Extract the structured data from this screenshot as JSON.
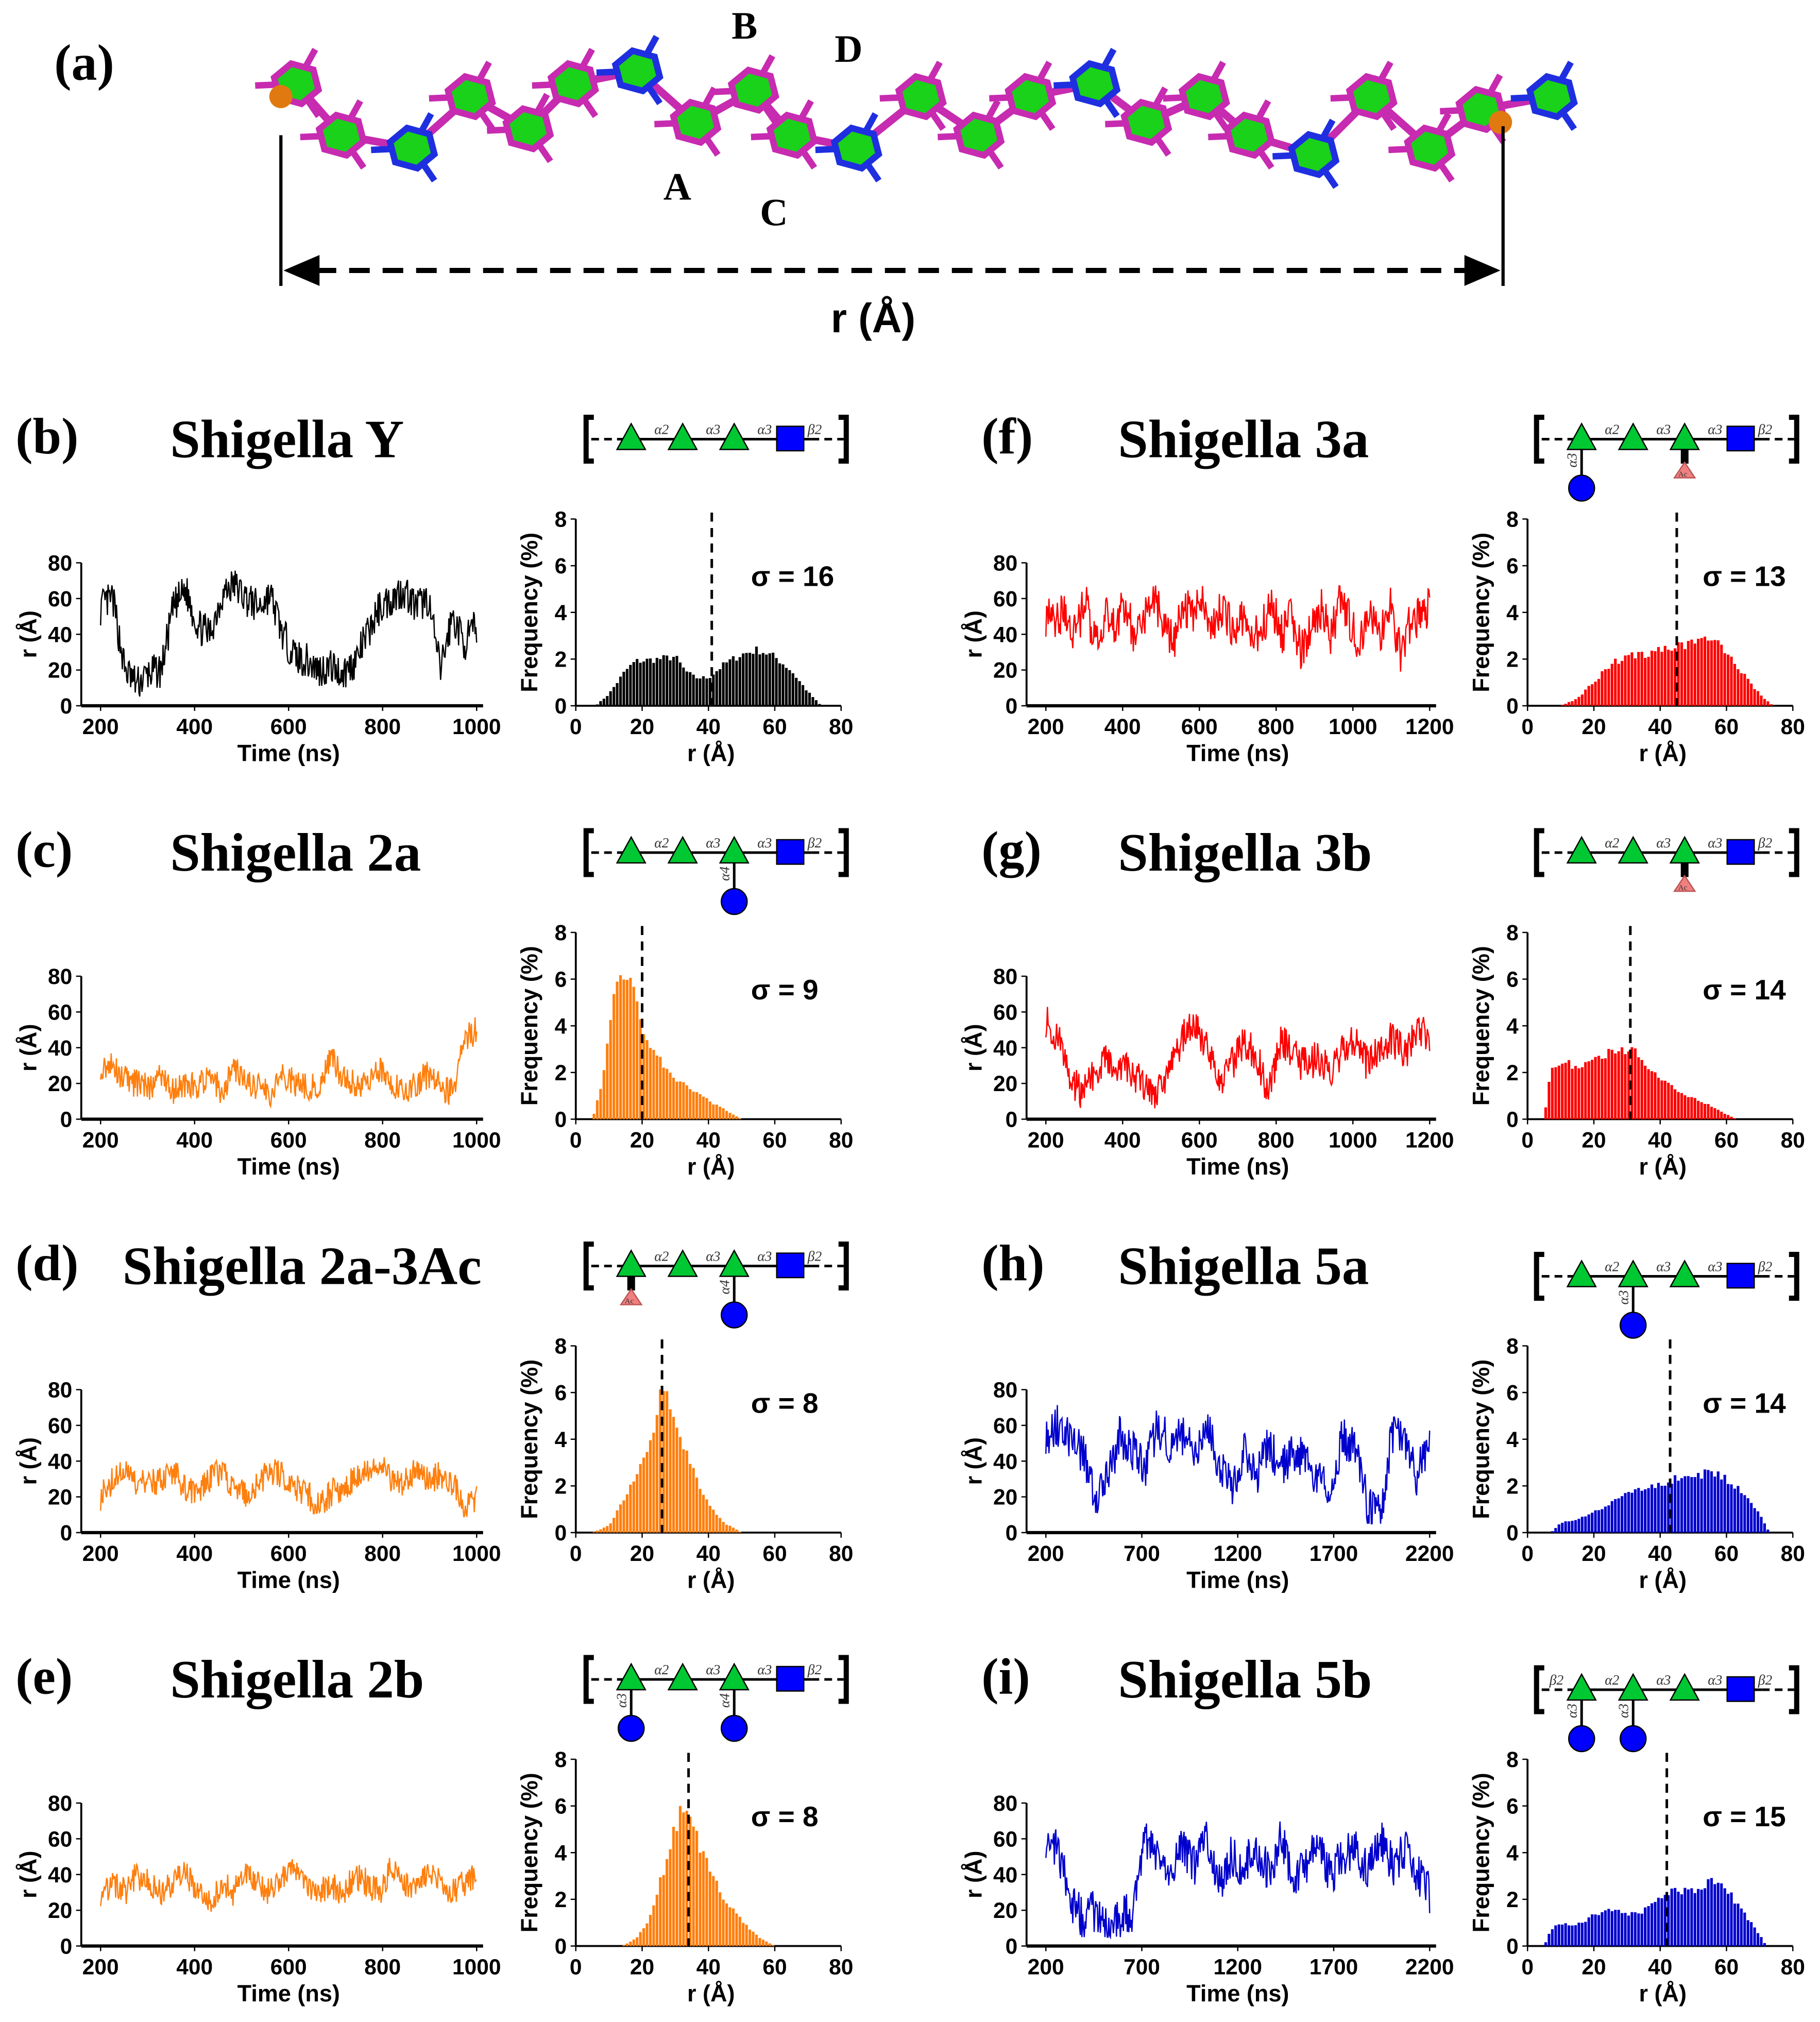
{
  "panel_a": {
    "label": "(a)",
    "residue_labels": [
      "A",
      "B",
      "C",
      "D"
    ],
    "distance_label": "r (Å)",
    "colors": {
      "rha": "#c72bb0",
      "glcnac": "#1f2fe0",
      "ring": "#19d219",
      "terminal": "#e07a10"
    }
  },
  "axes": {
    "time_xlabel": "Time (ns)",
    "time_ylabel": "r (Å)",
    "hist_xlabel": "r (Å)",
    "hist_ylabel": "Frequency (%)",
    "time_yticks": [
      0,
      20,
      40,
      60,
      80
    ],
    "hist_yticks": [
      0,
      2,
      4,
      6,
      8
    ],
    "hist_xticks": [
      0,
      20,
      40,
      60,
      80
    ]
  },
  "chart_data": [
    {
      "id": "b",
      "label": "(b)",
      "title": "Shigella Y",
      "type": "line+histogram",
      "color": "#000000",
      "glycan": {
        "left_link": "",
        "links": [
          "α2",
          "α3",
          "α3",
          "β2"
        ],
        "branches": []
      },
      "time": {
        "xlim": [
          200,
          1000
        ],
        "xticks": [
          200,
          400,
          600,
          800,
          1000
        ],
        "ylim": [
          0,
          80
        ],
        "noise_amplitude": 10,
        "samples": [
          55,
          60,
          20,
          12,
          18,
          20,
          55,
          65,
          45,
          40,
          62,
          68,
          60,
          55,
          62,
          40,
          28,
          25,
          20,
          22,
          18,
          25,
          40,
          55,
          60,
          65,
          55,
          60,
          20,
          50,
          35,
          45
        ]
      },
      "hist": {
        "xlim": [
          0,
          80
        ],
        "ylim": [
          0,
          8
        ],
        "mean": 41,
        "sigma_label": "σ = 16",
        "envelope": [
          [
            6,
            0
          ],
          [
            10,
            0.5
          ],
          [
            15,
            1.5
          ],
          [
            18,
            1.9
          ],
          [
            25,
            2.0
          ],
          [
            30,
            2.1
          ],
          [
            33,
            1.5
          ],
          [
            36,
            1.2
          ],
          [
            40,
            1.2
          ],
          [
            45,
            1.8
          ],
          [
            50,
            2.2
          ],
          [
            55,
            2.4
          ],
          [
            60,
            2.1
          ],
          [
            65,
            1.5
          ],
          [
            70,
            0.6
          ],
          [
            74,
            0
          ]
        ]
      }
    },
    {
      "id": "c",
      "label": "(c)",
      "title": "Shigella 2a",
      "type": "line+histogram",
      "color": "#ff7f0e",
      "glycan": {
        "left_link": "",
        "links": [
          "α2",
          "α3",
          "α3",
          "β2"
        ],
        "branches": [
          {
            "pos": 2,
            "type": "circle",
            "label": "α4"
          }
        ]
      },
      "time": {
        "xlim": [
          200,
          1000
        ],
        "xticks": [
          200,
          400,
          600,
          800,
          1000
        ],
        "ylim": [
          0,
          80
        ],
        "noise_amplitude": 8,
        "samples": [
          30,
          30,
          22,
          20,
          18,
          25,
          15,
          20,
          18,
          25,
          15,
          30,
          20,
          18,
          15,
          25,
          20,
          18,
          20,
          35,
          22,
          20,
          18,
          28,
          20,
          15,
          20,
          25,
          18,
          15,
          45,
          50
        ]
      },
      "hist": {
        "xlim": [
          0,
          80
        ],
        "ylim": [
          0,
          8
        ],
        "mean": 20,
        "sigma_label": "σ = 9",
        "envelope": [
          [
            5,
            0
          ],
          [
            8,
            1.5
          ],
          [
            10,
            4
          ],
          [
            12,
            5.5
          ],
          [
            14,
            6
          ],
          [
            17,
            5.8
          ],
          [
            19,
            5
          ],
          [
            21,
            3.5
          ],
          [
            25,
            2.6
          ],
          [
            30,
            1.8
          ],
          [
            35,
            1.2
          ],
          [
            40,
            0.8
          ],
          [
            45,
            0.4
          ],
          [
            50,
            0
          ]
        ]
      }
    },
    {
      "id": "d",
      "label": "(d)",
      "title": "Shigella 2a-3Ac",
      "type": "line+histogram",
      "color": "#ff7f0e",
      "glycan": {
        "left_link": "",
        "links": [
          "α2",
          "α3",
          "α3",
          "β2"
        ],
        "branches": [
          {
            "pos": 0,
            "type": "ac",
            "label": "Ac"
          },
          {
            "pos": 2,
            "type": "circle",
            "label": "α4"
          }
        ]
      },
      "time": {
        "xlim": [
          200,
          1000
        ],
        "xticks": [
          200,
          400,
          600,
          800,
          1000
        ],
        "ylim": [
          0,
          80
        ],
        "noise_amplitude": 8,
        "samples": [
          20,
          30,
          35,
          25,
          30,
          28,
          35,
          25,
          20,
          30,
          35,
          25,
          20,
          28,
          35,
          32,
          25,
          22,
          15,
          22,
          25,
          30,
          35,
          40,
          30,
          28,
          35,
          30,
          32,
          28,
          15,
          20
        ]
      },
      "hist": {
        "xlim": [
          0,
          80
        ],
        "ylim": [
          0,
          8
        ],
        "mean": 26,
        "sigma_label": "σ = 8",
        "envelope": [
          [
            5,
            0
          ],
          [
            10,
            0.3
          ],
          [
            15,
            1.5
          ],
          [
            20,
            3
          ],
          [
            24,
            4.5
          ],
          [
            26,
            6.3
          ],
          [
            28,
            5.8
          ],
          [
            30,
            4.8
          ],
          [
            35,
            2.8
          ],
          [
            40,
            1.2
          ],
          [
            45,
            0.4
          ],
          [
            50,
            0
          ]
        ]
      }
    },
    {
      "id": "e",
      "label": "(e)",
      "title": "Shigella 2b",
      "type": "line+histogram",
      "color": "#ff7f0e",
      "glycan": {
        "left_link": "",
        "links": [
          "α2",
          "α3",
          "α3",
          "β2"
        ],
        "branches": [
          {
            "pos": 0,
            "type": "circle",
            "label": "α3"
          },
          {
            "pos": 2,
            "type": "circle",
            "label": "α4"
          }
        ]
      },
      "time": {
        "xlim": [
          200,
          1000
        ],
        "xticks": [
          200,
          400,
          600,
          800,
          1000
        ],
        "ylim": [
          0,
          80
        ],
        "noise_amplitude": 8,
        "samples": [
          30,
          35,
          30,
          40,
          35,
          30,
          35,
          40,
          30,
          25,
          35,
          30,
          40,
          35,
          30,
          40,
          45,
          35,
          30,
          35,
          30,
          40,
          35,
          30,
          45,
          35,
          30,
          40,
          35,
          30,
          35,
          40
        ]
      },
      "hist": {
        "xlim": [
          0,
          80
        ],
        "ylim": [
          0,
          8
        ],
        "mean": 34,
        "sigma_label": "σ = 8",
        "envelope": [
          [
            14,
            0
          ],
          [
            18,
            0.3
          ],
          [
            22,
            1
          ],
          [
            26,
            3
          ],
          [
            30,
            5
          ],
          [
            32,
            6
          ],
          [
            34,
            5.5
          ],
          [
            36,
            4.8
          ],
          [
            40,
            3.5
          ],
          [
            45,
            2
          ],
          [
            50,
            1.1
          ],
          [
            55,
            0.4
          ],
          [
            60,
            0
          ]
        ]
      }
    },
    {
      "id": "f",
      "label": "(f)",
      "title": "Shigella 3a",
      "type": "line+histogram",
      "color": "#ff0000",
      "glycan": {
        "left_link": "",
        "links": [
          "α2",
          "α3",
          "α3",
          "β2"
        ],
        "branches": [
          {
            "pos": 0,
            "type": "circle",
            "label": "α3"
          },
          {
            "pos": 2,
            "type": "ac",
            "label": "Ac"
          }
        ]
      },
      "time": {
        "xlim": [
          200,
          1200
        ],
        "xticks": [
          200,
          400,
          600,
          800,
          1000,
          1200
        ],
        "ylim": [
          0,
          80
        ],
        "noise_amplitude": 12,
        "samples": [
          50,
          45,
          55,
          40,
          60,
          35,
          50,
          45,
          55,
          40,
          50,
          60,
          45,
          35,
          55,
          50,
          60,
          45,
          55,
          40,
          50,
          35,
          45,
          55,
          40,
          50,
          30,
          45,
          55,
          40,
          60,
          45,
          35,
          50,
          40,
          55,
          30,
          45,
          50,
          55
        ]
      },
      "hist": {
        "xlim": [
          0,
          80
        ],
        "ylim": [
          0,
          8
        ],
        "mean": 45,
        "sigma_label": "σ = 13",
        "envelope": [
          [
            10,
            0
          ],
          [
            15,
            0.3
          ],
          [
            20,
            1
          ],
          [
            25,
            1.8
          ],
          [
            30,
            2.1
          ],
          [
            35,
            2.2
          ],
          [
            40,
            2.4
          ],
          [
            45,
            2.5
          ],
          [
            50,
            2.7
          ],
          [
            54,
            2.9
          ],
          [
            58,
            2.6
          ],
          [
            62,
            2
          ],
          [
            66,
            1.2
          ],
          [
            70,
            0.5
          ],
          [
            74,
            0
          ]
        ]
      }
    },
    {
      "id": "g",
      "label": "(g)",
      "title": "Shigella 3b",
      "type": "line+histogram",
      "color": "#ff0000",
      "glycan": {
        "left_link": "",
        "links": [
          "α2",
          "α3",
          "α3",
          "β2"
        ],
        "branches": [
          {
            "pos": 2,
            "type": "ac",
            "label": "Ac"
          }
        ]
      },
      "time": {
        "xlim": [
          200,
          1200
        ],
        "xticks": [
          200,
          400,
          600,
          800,
          1000,
          1200
        ],
        "ylim": [
          0,
          80
        ],
        "noise_amplitude": 10,
        "samples": [
          55,
          45,
          20,
          15,
          25,
          35,
          30,
          25,
          20,
          15,
          25,
          45,
          55,
          40,
          20,
          30,
          45,
          35,
          15,
          45,
          35,
          30,
          35,
          25,
          40,
          45,
          30,
          40,
          45,
          35,
          50,
          45
        ]
      },
      "hist": {
        "xlim": [
          0,
          80
        ],
        "ylim": [
          0,
          8
        ],
        "mean": 31,
        "sigma_label": "σ = 14",
        "envelope": [
          [
            5,
            0
          ],
          [
            7,
            2.2
          ],
          [
            10,
            2.4
          ],
          [
            15,
            2.3
          ],
          [
            20,
            2.5
          ],
          [
            25,
            2.9
          ],
          [
            30,
            3.0
          ],
          [
            33,
            2.8
          ],
          [
            36,
            2.2
          ],
          [
            40,
            1.8
          ],
          [
            45,
            1.3
          ],
          [
            50,
            0.9
          ],
          [
            55,
            0.6
          ],
          [
            60,
            0.2
          ],
          [
            63,
            0
          ]
        ]
      }
    },
    {
      "id": "h",
      "label": "(h)",
      "title": "Shigella 5a",
      "type": "line+histogram",
      "color": "#0000cc",
      "glycan": {
        "left_link": "",
        "links": [
          "α2",
          "α3",
          "α3",
          "β2"
        ],
        "branches": [
          {
            "pos": 1,
            "type": "circle",
            "label": "α3"
          }
        ]
      },
      "time": {
        "xlim": [
          200,
          2200
        ],
        "xticks": [
          200,
          700,
          1200,
          1700,
          2200
        ],
        "ylim": [
          0,
          80
        ],
        "noise_amplitude": 12,
        "samples": [
          55,
          60,
          50,
          45,
          20,
          30,
          55,
          45,
          35,
          60,
          50,
          55,
          45,
          60,
          40,
          25,
          45,
          30,
          50,
          35,
          45,
          40,
          30,
          20,
          55,
          45,
          15,
          10,
          55,
          50,
          30,
          55
        ]
      },
      "hist": {
        "xlim": [
          0,
          80
        ],
        "ylim": [
          0,
          8
        ],
        "mean": 43,
        "sigma_label": "σ = 14",
        "envelope": [
          [
            7,
            0
          ],
          [
            10,
            0.4
          ],
          [
            15,
            0.6
          ],
          [
            20,
            0.9
          ],
          [
            25,
            1.2
          ],
          [
            30,
            1.7
          ],
          [
            35,
            1.9
          ],
          [
            40,
            2.1
          ],
          [
            45,
            2.3
          ],
          [
            50,
            2.4
          ],
          [
            55,
            2.6
          ],
          [
            60,
            2.3
          ],
          [
            65,
            1.7
          ],
          [
            70,
            0.8
          ],
          [
            73,
            0
          ]
        ]
      }
    },
    {
      "id": "i",
      "label": "(i)",
      "title": "Shigella 5b",
      "type": "line+histogram",
      "color": "#0000cc",
      "glycan": {
        "left_link": "β2",
        "links": [
          "α2",
          "α3",
          "α3",
          "β2"
        ],
        "branches": [
          {
            "pos": 0,
            "type": "circle",
            "label": "α3"
          },
          {
            "pos": 1,
            "type": "circle",
            "label": "α3"
          }
        ]
      },
      "time": {
        "xlim": [
          200,
          2200
        ],
        "xticks": [
          200,
          700,
          1200,
          1700,
          2200
        ],
        "ylim": [
          0,
          80
        ],
        "noise_amplitude": 12,
        "samples": [
          60,
          55,
          25,
          15,
          20,
          10,
          15,
          20,
          60,
          50,
          40,
          55,
          45,
          60,
          35,
          50,
          45,
          55,
          40,
          60,
          35,
          45,
          55,
          40,
          50,
          55,
          40,
          60,
          45,
          55,
          40,
          30
        ]
      },
      "hist": {
        "xlim": [
          0,
          80
        ],
        "ylim": [
          0,
          8
        ],
        "mean": 42,
        "sigma_label": "σ = 15",
        "envelope": [
          [
            5,
            0
          ],
          [
            7,
            0.7
          ],
          [
            10,
            1.0
          ],
          [
            15,
            0.9
          ],
          [
            20,
            1.3
          ],
          [
            25,
            1.5
          ],
          [
            30,
            1.4
          ],
          [
            35,
            1.5
          ],
          [
            40,
            2.0
          ],
          [
            45,
            2.4
          ],
          [
            50,
            2.3
          ],
          [
            55,
            2.8
          ],
          [
            57,
            2.9
          ],
          [
            60,
            2.4
          ],
          [
            65,
            1.5
          ],
          [
            70,
            0.5
          ],
          [
            72,
            0
          ]
        ]
      }
    }
  ]
}
